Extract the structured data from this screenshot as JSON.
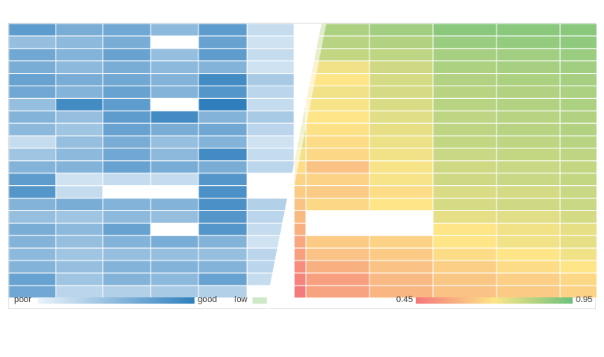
{
  "chart_data": [
    {
      "type": "heatmap",
      "colorscale": [
        "#eaf3fb",
        "#2f7fbd"
      ],
      "legend": {
        "low_label": "poor",
        "high_label": "good"
      },
      "columns": 6,
      "rows": 22,
      "values": [
        [
          0.75,
          0.6,
          0.65,
          0.5,
          0.75,
          0.2
        ],
        [
          0.45,
          0.5,
          0.6,
          0.0,
          0.7,
          0.15
        ],
        [
          0.65,
          0.55,
          0.7,
          0.45,
          0.75,
          0.2
        ],
        [
          0.6,
          0.5,
          0.6,
          0.5,
          0.55,
          0.15
        ],
        [
          0.7,
          0.6,
          0.65,
          0.55,
          0.9,
          0.35
        ],
        [
          0.65,
          0.55,
          0.7,
          0.55,
          0.8,
          0.25
        ],
        [
          0.45,
          0.9,
          0.75,
          0.0,
          1.0,
          0.2
        ],
        [
          0.55,
          0.45,
          0.75,
          0.9,
          0.55,
          0.35
        ],
        [
          0.5,
          0.4,
          0.7,
          0.6,
          0.65,
          0.25
        ],
        [
          0.2,
          0.45,
          0.6,
          0.45,
          0.55,
          0.15
        ],
        [
          0.4,
          0.5,
          0.65,
          0.5,
          0.9,
          0.2
        ],
        [
          0.55,
          0.55,
          0.7,
          0.6,
          0.6,
          0.25
        ],
        [
          0.75,
          0.15,
          0.2,
          0.2,
          0.8,
          0.0
        ],
        [
          0.8,
          0.2,
          0.0,
          0.0,
          0.85,
          0.0
        ],
        [
          0.55,
          0.6,
          0.55,
          0.55,
          0.85,
          0.3
        ],
        [
          0.45,
          0.4,
          0.5,
          0.45,
          0.8,
          0.25
        ],
        [
          0.6,
          0.5,
          0.7,
          0.0,
          0.8,
          0.2
        ],
        [
          0.55,
          0.45,
          0.55,
          0.6,
          0.55,
          0.15
        ],
        [
          0.5,
          0.4,
          0.45,
          0.45,
          0.45,
          0.25
        ],
        [
          0.55,
          0.45,
          0.55,
          0.55,
          0.55,
          0.25
        ],
        [
          0.7,
          0.4,
          0.55,
          0.5,
          0.7,
          0.2
        ],
        [
          0.65,
          0.25,
          0.3,
          0.35,
          0.3,
          0.0
        ]
      ]
    },
    {
      "type": "heatmap",
      "colorscale": [
        "#f4777a",
        "#fde588",
        "#6dc17c"
      ],
      "legend": {
        "min_label": "0.45",
        "max_label": "0.95",
        "extra_label": "low"
      },
      "columns": 6,
      "rows": 22,
      "values": [
        [
          0.88,
          0.84,
          0.86,
          0.9,
          0.9,
          0.9
        ],
        [
          0.86,
          0.82,
          0.83,
          0.87,
          0.88,
          0.89
        ],
        [
          0.84,
          0.8,
          0.81,
          0.85,
          0.86,
          0.87
        ],
        [
          0.82,
          0.72,
          0.78,
          0.84,
          0.85,
          0.86
        ],
        [
          0.8,
          0.7,
          0.77,
          0.83,
          0.84,
          0.85
        ],
        [
          0.78,
          0.72,
          0.77,
          0.82,
          0.83,
          0.84
        ],
        [
          0.8,
          0.71,
          0.76,
          0.82,
          0.83,
          0.84
        ],
        [
          0.78,
          0.7,
          0.75,
          0.81,
          0.82,
          0.83
        ],
        [
          0.76,
          0.69,
          0.74,
          0.81,
          0.82,
          0.83
        ],
        [
          0.74,
          0.68,
          0.73,
          0.8,
          0.81,
          0.82
        ],
        [
          0.72,
          0.67,
          0.72,
          0.79,
          0.8,
          0.81
        ],
        [
          0.68,
          0.62,
          0.71,
          0.78,
          0.79,
          0.8
        ],
        [
          0.66,
          0.66,
          0.71,
          0.78,
          0.79,
          0.8
        ],
        [
          0.64,
          0.64,
          0.68,
          0.76,
          0.77,
          0.79
        ],
        [
          0.62,
          0.67,
          0.7,
          0.77,
          0.78,
          0.79
        ],
        [
          0.6,
          null,
          null,
          0.74,
          0.75,
          0.77
        ],
        [
          0.58,
          null,
          null,
          0.7,
          0.72,
          0.74
        ],
        [
          0.56,
          0.64,
          0.66,
          0.7,
          0.72,
          0.74
        ],
        [
          0.54,
          0.62,
          0.64,
          0.68,
          0.7,
          0.72
        ],
        [
          0.5,
          0.58,
          0.62,
          0.65,
          0.68,
          0.7
        ],
        [
          0.48,
          0.54,
          0.6,
          0.63,
          0.65,
          0.67
        ],
        [
          0.46,
          0.55,
          0.59,
          0.62,
          0.64,
          0.66
        ]
      ]
    }
  ]
}
